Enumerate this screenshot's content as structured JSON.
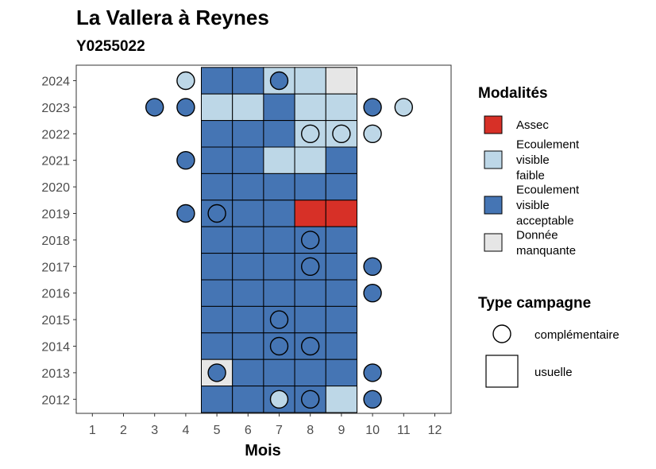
{
  "chart_data": {
    "type": "heatmap",
    "title": "La Vallera à Reynes",
    "subtitle": "Y0255022",
    "xlabel": "Mois",
    "ylabel": "",
    "x_ticks": [
      "1",
      "2",
      "3",
      "4",
      "5",
      "6",
      "7",
      "8",
      "9",
      "10",
      "11",
      "12"
    ],
    "y_ticks": [
      "2024",
      "2023",
      "2022",
      "2021",
      "2020",
      "2019",
      "2018",
      "2017",
      "2016",
      "2015",
      "2014",
      "2013",
      "2012"
    ],
    "modalites": [
      {
        "key": "A",
        "label": "Assec",
        "color": "#d73027"
      },
      {
        "key": "F",
        "label": "Ecoulement visible faible",
        "color": "#bdd7e7"
      },
      {
        "key": "V",
        "label": "Ecoulement visible acceptable",
        "color": "#4575b4"
      },
      {
        "key": "M",
        "label": "Donnée manquante",
        "color": "#e6e6e6"
      }
    ],
    "campagne_types": [
      {
        "key": "complementaire",
        "label": "complémentaire",
        "shape": "circle"
      },
      {
        "key": "usuelle",
        "label": "usuelle",
        "shape": "square"
      }
    ],
    "usuelle": [
      {
        "year": 2024,
        "months": [
          "V",
          "V",
          "F",
          "F",
          "M"
        ]
      },
      {
        "year": 2023,
        "months": [
          "F",
          "F",
          "V",
          "F",
          "F"
        ]
      },
      {
        "year": 2022,
        "months": [
          "V",
          "V",
          "V",
          "F",
          "F"
        ]
      },
      {
        "year": 2021,
        "months": [
          "V",
          "V",
          "F",
          "F",
          "V"
        ]
      },
      {
        "year": 2020,
        "months": [
          "V",
          "V",
          "V",
          "V",
          "V"
        ]
      },
      {
        "year": 2019,
        "months": [
          "V",
          "V",
          "V",
          "A",
          "A"
        ]
      },
      {
        "year": 2018,
        "months": [
          "V",
          "V",
          "V",
          "V",
          "V"
        ]
      },
      {
        "year": 2017,
        "months": [
          "V",
          "V",
          "V",
          "V",
          "V"
        ]
      },
      {
        "year": 2016,
        "months": [
          "V",
          "V",
          "V",
          "V",
          "V"
        ]
      },
      {
        "year": 2015,
        "months": [
          "V",
          "V",
          "V",
          "V",
          "V"
        ]
      },
      {
        "year": 2014,
        "months": [
          "V",
          "V",
          "V",
          "V",
          "V"
        ]
      },
      {
        "year": 2013,
        "months": [
          "M",
          "V",
          "V",
          "V",
          "V"
        ]
      },
      {
        "year": 2012,
        "months": [
          "V",
          "V",
          "V",
          "V",
          "F"
        ]
      }
    ],
    "usuelle_first_month": 5,
    "complementaire": [
      {
        "year": 2024,
        "month": 4,
        "value": "F"
      },
      {
        "year": 2024,
        "month": 7,
        "value": "V"
      },
      {
        "year": 2023,
        "month": 3,
        "value": "V"
      },
      {
        "year": 2023,
        "month": 4,
        "value": "V"
      },
      {
        "year": 2023,
        "month": 10,
        "value": "V"
      },
      {
        "year": 2023,
        "month": 11,
        "value": "F"
      },
      {
        "year": 2022,
        "month": 8,
        "value": "F"
      },
      {
        "year": 2022,
        "month": 9,
        "value": "F"
      },
      {
        "year": 2022,
        "month": 10,
        "value": "F"
      },
      {
        "year": 2021,
        "month": 4,
        "value": "V"
      },
      {
        "year": 2019,
        "month": 4,
        "value": "V"
      },
      {
        "year": 2019,
        "month": 5,
        "value": "V"
      },
      {
        "year": 2018,
        "month": 8,
        "value": "V"
      },
      {
        "year": 2017,
        "month": 8,
        "value": "V"
      },
      {
        "year": 2017,
        "month": 10,
        "value": "V"
      },
      {
        "year": 2016,
        "month": 10,
        "value": "V"
      },
      {
        "year": 2015,
        "month": 7,
        "value": "V"
      },
      {
        "year": 2014,
        "month": 7,
        "value": "V"
      },
      {
        "year": 2014,
        "month": 8,
        "value": "V"
      },
      {
        "year": 2013,
        "month": 5,
        "value": "V"
      },
      {
        "year": 2013,
        "month": 10,
        "value": "V"
      },
      {
        "year": 2012,
        "month": 7,
        "value": "F"
      },
      {
        "year": 2012,
        "month": 8,
        "value": "V"
      },
      {
        "year": 2012,
        "month": 10,
        "value": "V"
      }
    ],
    "legend": {
      "modalites_title": "Modalités",
      "modalites_lines": [
        [
          "Assec"
        ],
        [
          "Ecoulement",
          "visible",
          "faible"
        ],
        [
          "Ecoulement",
          "visible",
          "acceptable"
        ],
        [
          "Donnée",
          "manquante"
        ]
      ],
      "campagne_title": "Type campagne",
      "placement": "right"
    }
  }
}
